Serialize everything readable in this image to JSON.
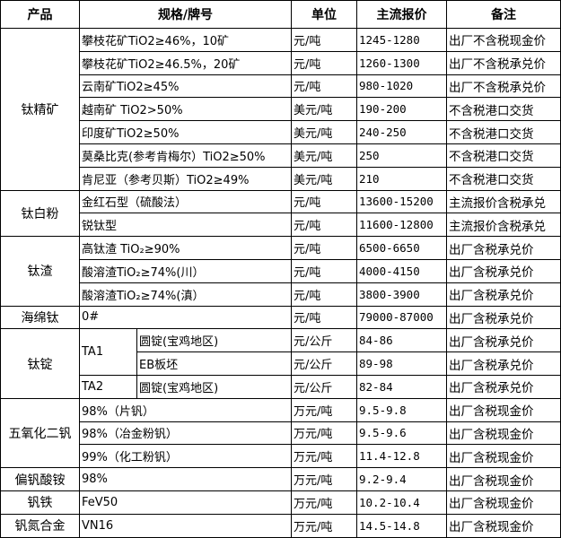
{
  "header": {
    "product": "产品",
    "spec": "规格/牌号",
    "unit": "单位",
    "price": "主流报价",
    "note": "备注"
  },
  "groups": [
    {
      "name": "钛精矿",
      "rows": [
        {
          "spec": "攀枝花矿TiO2≥46%，10矿",
          "unit": "元/吨",
          "price": "1245-1280",
          "note": "出厂不含税现金价"
        },
        {
          "spec": "攀枝花矿TiO2≥46.5%，20矿",
          "unit": "元/吨",
          "price": "1260-1300",
          "note": "出厂不含税承兑价"
        },
        {
          "spec": "云南矿TiO2≥45%",
          "unit": "元/吨",
          "price": "980-1020",
          "note": "出厂不含税承兑价"
        },
        {
          "spec": "越南矿 TiO2>50%",
          "unit": "美元/吨",
          "price": "190-200",
          "note": "不含税港口交货"
        },
        {
          "spec": "印度矿TiO2≥50%",
          "unit": "美元/吨",
          "price": "240-250",
          "note": "不含税港口交货"
        },
        {
          "spec": "莫桑比克(参考肯梅尔）TiO2≥50%",
          "unit": "美元/吨",
          "price": "250",
          "note": "不含税港口交货"
        },
        {
          "spec": "肯尼亚（参考贝斯）TiO2≥49%",
          "unit": "美元/吨",
          "price": "210",
          "note": "不含税港口交货"
        }
      ]
    },
    {
      "name": "钛白粉",
      "rows": [
        {
          "spec": "金红石型（硫酸法）",
          "unit": "元/吨",
          "price": "13600-15200",
          "note": "主流报价含税承兑"
        },
        {
          "spec": "锐钛型",
          "unit": "元/吨",
          "price": "11600-12800",
          "note": "主流报价含税承兑"
        }
      ]
    },
    {
      "name": "钛渣",
      "rows": [
        {
          "spec": "高钛渣 TiO₂≥90%",
          "unit": "元/吨",
          "price": "6500-6650",
          "note": "出厂含税承兑价"
        },
        {
          "spec": "酸溶渣TiO₂≥74%(川）",
          "unit": "元/吨",
          "price": "4000-4150",
          "note": "出厂含税承兑价"
        },
        {
          "spec": "酸溶渣TiO₂≥74%(滇）",
          "unit": "元/吨",
          "price": "3800-3900",
          "note": "出厂含税承兑价"
        }
      ]
    },
    {
      "name": "海绵钛",
      "rows": [
        {
          "spec": "0#",
          "unit": "元/吨",
          "price": "79000-87000",
          "note": "出厂含税承兑价"
        }
      ]
    },
    {
      "name": "钛锭",
      "grades": [
        {
          "grade": "TA1",
          "rows": [
            {
              "spec": "圆锭(宝鸡地区)",
              "unit": "元/公斤",
              "price": "84-86",
              "note": "出厂含税承兑价"
            },
            {
              "spec": "EB板坯",
              "unit": "元/公斤",
              "price": "89-98",
              "note": "出厂含税承兑价"
            }
          ]
        },
        {
          "grade": "TA2",
          "rows": [
            {
              "spec": "圆锭(宝鸡地区)",
              "unit": "元/公斤",
              "price": "82-84",
              "note": "出厂含税承兑价"
            }
          ]
        }
      ]
    },
    {
      "name": "五氧化二钒",
      "rows": [
        {
          "spec": "98%（片钒）",
          "unit": "万元/吨",
          "price": "9.5-9.8",
          "note": "出厂含税现金价"
        },
        {
          "spec": "98%（冶金粉钒）",
          "unit": "万元/吨",
          "price": "9.5-9.6",
          "note": "出厂含税现金价"
        },
        {
          "spec": "99%（化工粉钒）",
          "unit": "万元/吨",
          "price": "11.4-12.8",
          "note": "出厂含税现金价"
        }
      ]
    },
    {
      "name": "偏钒酸铵",
      "rows": [
        {
          "spec": "98%",
          "unit": "万元/吨",
          "price": "9.2-9.4",
          "note": "出厂含税现金价"
        }
      ]
    },
    {
      "name": "钒铁",
      "rows": [
        {
          "spec": "FeV50",
          "unit": "万元/吨",
          "price": "10.2-10.4",
          "note": "出厂含税现金价"
        }
      ]
    },
    {
      "name": "钒氮合金",
      "rows": [
        {
          "spec": "VN16",
          "unit": "万元/吨",
          "price": "14.5-14.8",
          "note": "出厂含税现金价"
        }
      ]
    }
  ]
}
